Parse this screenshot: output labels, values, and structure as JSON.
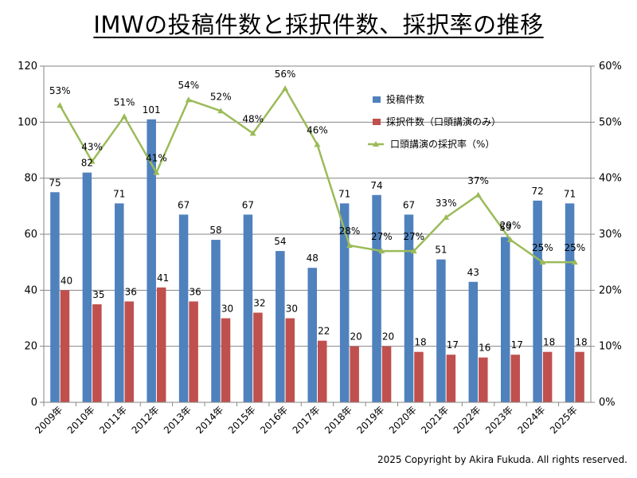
{
  "title": "IMWの投稿件数と採択件数、採択率の推移",
  "copyright": "2025 Copyright by Akira Fukuda. All rights reserved.",
  "colors": {
    "submissions": "#4F81BD",
    "accepted": "#C0504D",
    "rate": "#9BBB59",
    "grid": "#868686"
  },
  "chart_data": {
    "type": "bar",
    "title": "IMWの投稿件数と採択件数、採択率の推移",
    "categories": [
      "2009年",
      "2010年",
      "2011年",
      "2012年",
      "2013年",
      "2014年",
      "2015年",
      "2016年",
      "2017年",
      "2018年",
      "2019年",
      "2020年",
      "2021年",
      "2022年",
      "2023年",
      "2024年",
      "2025年"
    ],
    "series": [
      {
        "name": "投稿件数",
        "type": "bar",
        "axis": "left",
        "values": [
          75,
          82,
          71,
          101,
          67,
          58,
          67,
          54,
          48,
          71,
          74,
          67,
          51,
          43,
          59,
          72,
          71
        ]
      },
      {
        "name": "採択件数（口頭講演のみ）",
        "type": "bar",
        "axis": "left",
        "values": [
          40,
          35,
          36,
          41,
          36,
          30,
          32,
          30,
          22,
          20,
          20,
          18,
          17,
          16,
          17,
          18,
          18
        ]
      },
      {
        "name": "口頭講演の採択率（%）",
        "type": "line",
        "axis": "right",
        "values": [
          53,
          43,
          51,
          41,
          54,
          52,
          48,
          56,
          46,
          28,
          27,
          27,
          33,
          37,
          29,
          25,
          25
        ],
        "labels": [
          "53%",
          "43%",
          "51%",
          "41%",
          "54%",
          "52%",
          "48%",
          "56%",
          "46%",
          "28%",
          "27%",
          "27%",
          "33%",
          "37%",
          "29%",
          "25%",
          "25%"
        ]
      }
    ],
    "y_left": {
      "min": 0,
      "max": 120,
      "step": 20,
      "tick_labels": [
        "0",
        "20",
        "40",
        "60",
        "80",
        "100",
        "120"
      ]
    },
    "y_right": {
      "min": 0,
      "max": 60,
      "step": 10,
      "tick_labels": [
        "0%",
        "10%",
        "20%",
        "30%",
        "40%",
        "50%",
        "60%"
      ]
    },
    "grid": true,
    "legend_position": "top-right"
  }
}
